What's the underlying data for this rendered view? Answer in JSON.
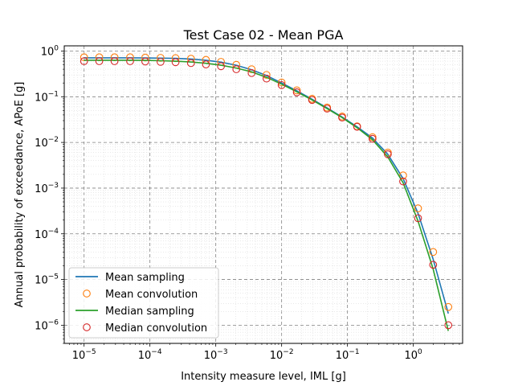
{
  "chart_data": {
    "type": "line",
    "title": "Test Case 02 - Mean PGA",
    "xlabel": "Intensity measure level, IML [g]",
    "ylabel": "Annual probability of exceedance, APoE [g]",
    "x_scale": "log",
    "y_scale": "log",
    "xlim": [
      5e-06,
      5.6
    ],
    "ylim": [
      4e-07,
      1.3
    ],
    "x_ticks": [
      {
        "value": 1e-05,
        "base": "10",
        "exp": "−5"
      },
      {
        "value": 0.0001,
        "base": "10",
        "exp": "−4"
      },
      {
        "value": 0.001,
        "base": "10",
        "exp": "−3"
      },
      {
        "value": 0.01,
        "base": "10",
        "exp": "−2"
      },
      {
        "value": 0.1,
        "base": "10",
        "exp": "−1"
      },
      {
        "value": 1,
        "base": "10",
        "exp": "0"
      }
    ],
    "y_ticks": [
      {
        "value": 1e-06,
        "base": "10",
        "exp": "−6"
      },
      {
        "value": 1e-05,
        "base": "10",
        "exp": "−5"
      },
      {
        "value": 0.0001,
        "base": "10",
        "exp": "−4"
      },
      {
        "value": 0.001,
        "base": "10",
        "exp": "−3"
      },
      {
        "value": 0.01,
        "base": "10",
        "exp": "−2"
      },
      {
        "value": 0.1,
        "base": "10",
        "exp": "−1"
      },
      {
        "value": 1,
        "base": "10",
        "exp": "0"
      }
    ],
    "grid": true,
    "legend_position": "lower-left",
    "x": [
      1e-05,
      1.7e-05,
      2.9e-05,
      5e-05,
      8.5e-05,
      0.000145,
      0.000245,
      0.00042,
      0.00071,
      0.0012,
      0.00205,
      0.0035,
      0.0059,
      0.01,
      0.017,
      0.029,
      0.049,
      0.083,
      0.14,
      0.24,
      0.41,
      0.7,
      1.18,
      2.0,
      3.4
    ],
    "series": [
      {
        "name": "Mean sampling",
        "style": "line",
        "color": "#1f77b4",
        "values": [
          0.71,
          0.71,
          0.71,
          0.71,
          0.705,
          0.7,
          0.69,
          0.67,
          0.63,
          0.57,
          0.49,
          0.39,
          0.29,
          0.2,
          0.135,
          0.088,
          0.057,
          0.036,
          0.022,
          0.0125,
          0.0055,
          0.0016,
          0.00028,
          2.8e-05,
          1.8e-06
        ]
      },
      {
        "name": "Mean convolution",
        "style": "markers",
        "color": "#ff7f0e",
        "values": [
          0.73,
          0.73,
          0.73,
          0.73,
          0.72,
          0.71,
          0.7,
          0.68,
          0.64,
          0.58,
          0.5,
          0.4,
          0.3,
          0.205,
          0.138,
          0.09,
          0.058,
          0.037,
          0.0225,
          0.013,
          0.006,
          0.0019,
          0.00036,
          4e-05,
          2.5e-06
        ]
      },
      {
        "name": "Median sampling",
        "style": "line",
        "color": "#2ca02c",
        "values": [
          0.63,
          0.63,
          0.63,
          0.63,
          0.625,
          0.615,
          0.6,
          0.575,
          0.54,
          0.49,
          0.425,
          0.35,
          0.265,
          0.188,
          0.128,
          0.085,
          0.055,
          0.035,
          0.021,
          0.0115,
          0.0048,
          0.0013,
          0.00019,
          1.7e-05,
          7.5e-07
        ]
      },
      {
        "name": "Median convolution",
        "style": "markers",
        "color": "#d62728",
        "values": [
          0.6,
          0.6,
          0.6,
          0.6,
          0.59,
          0.58,
          0.57,
          0.545,
          0.51,
          0.465,
          0.4,
          0.33,
          0.25,
          0.18,
          0.125,
          0.085,
          0.055,
          0.035,
          0.022,
          0.012,
          0.0055,
          0.0014,
          0.00022,
          2.1e-05,
          1e-06
        ]
      }
    ]
  }
}
